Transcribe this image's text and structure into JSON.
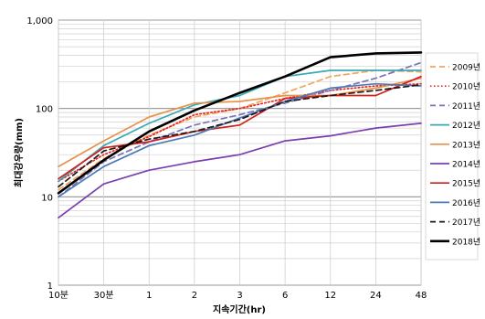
{
  "chart_data": {
    "type": "line",
    "xlabel": "지속기간(hr)",
    "ylabel": "최대강우량(mm)",
    "y_scale": "log",
    "ylim": [
      1,
      1000
    ],
    "y_ticks": [
      1,
      10,
      100,
      1000
    ],
    "y_tick_labels": [
      "1",
      "10",
      "100",
      "1,000"
    ],
    "categories": [
      "10분",
      "30분",
      "1",
      "2",
      "3",
      "6",
      "12",
      "24",
      "48"
    ],
    "grid": true,
    "legend_position": "right",
    "series": [
      {
        "name": "2009년",
        "color": "#f4a460",
        "dash": "dashed",
        "values": [
          12,
          27,
          50,
          80,
          100,
          150,
          230,
          270,
          260
        ]
      },
      {
        "name": "2010년",
        "color": "#e8261e",
        "dash": "dotted",
        "values": [
          15,
          30,
          48,
          85,
          100,
          130,
          160,
          180,
          190
        ]
      },
      {
        "name": "2011년",
        "color": "#7a72b8",
        "dash": "dashed",
        "values": [
          10,
          25,
          42,
          65,
          85,
          115,
          160,
          220,
          330
        ]
      },
      {
        "name": "2012년",
        "color": "#3aa9b3",
        "dash": "solid",
        "values": [
          15,
          38,
          68,
          110,
          140,
          230,
          270,
          270,
          270
        ]
      },
      {
        "name": "2013년",
        "color": "#e8914a",
        "dash": "solid",
        "values": [
          22,
          43,
          80,
          115,
          120,
          140,
          140,
          170,
          220
        ]
      },
      {
        "name": "2014년",
        "color": "#7b3fb0",
        "dash": "solid",
        "values": [
          5.8,
          14,
          20,
          25,
          30,
          43,
          49,
          60,
          68
        ]
      },
      {
        "name": "2015년",
        "color": "#d0201c",
        "dash": "solid",
        "values": [
          16,
          36,
          42,
          55,
          65,
          130,
          140,
          140,
          230
        ]
      },
      {
        "name": "2016년",
        "color": "#4a7ab5",
        "dash": "solid",
        "values": [
          10,
          22,
          38,
          50,
          78,
          120,
          170,
          190,
          180
        ]
      },
      {
        "name": "2017년",
        "color": "#1a1a1a",
        "dash": "dashed",
        "values": [
          13,
          33,
          45,
          55,
          75,
          120,
          140,
          160,
          185
        ]
      },
      {
        "name": "2018년",
        "color": "#000000",
        "dash": "solid-thick",
        "values": [
          11,
          26,
          55,
          95,
          150,
          230,
          380,
          420,
          430
        ]
      }
    ]
  }
}
